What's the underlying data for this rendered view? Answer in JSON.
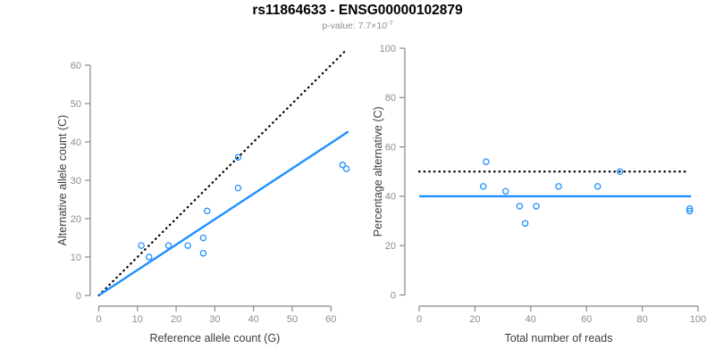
{
  "header": {
    "title": "rs11864633 - ENSG00000102879",
    "subtitle_prefix": "p-value: 7.7×10",
    "subtitle_exponent": "-7",
    "p_value": "7.7e-7"
  },
  "colors": {
    "accent_blue": "#1E90FF",
    "identity_black": "#000000",
    "axis_gray": "#878787",
    "tick_label_gray": "#8c8c8c",
    "axis_title_dark": "#3c3c3c",
    "subtitle_gray": "#8e8e8e"
  },
  "chart_data": [
    {
      "name": "allele-counts-scatter",
      "type": "scatter",
      "xlabel": "Reference allele count (G)",
      "ylabel": "Alternative allele count (C)",
      "xlim": [
        0,
        64.5
      ],
      "ylim": [
        0,
        64.5
      ],
      "xticks": [
        0,
        10,
        20,
        30,
        40,
        50,
        60
      ],
      "yticks": [
        0,
        10,
        20,
        30,
        40,
        50,
        60
      ],
      "grid": false,
      "legend": null,
      "points": [
        [
          11,
          13
        ],
        [
          13,
          10
        ],
        [
          18,
          13
        ],
        [
          23,
          13
        ],
        [
          27,
          11
        ],
        [
          27,
          15
        ],
        [
          28,
          22
        ],
        [
          36,
          28
        ],
        [
          36,
          36
        ],
        [
          63,
          34
        ],
        [
          64,
          33
        ]
      ],
      "point_color": "#1E90FF",
      "lines": [
        {
          "name": "identity-line",
          "style": "dotted",
          "color": "#000000",
          "x1": 0,
          "y1": 0,
          "x2": 63.7,
          "y2": 63.7
        },
        {
          "name": "fit-line",
          "style": "solid",
          "color": "#1E90FF",
          "x1": 0,
          "y1": 0,
          "x2": 64.5,
          "y2": 42.7
        }
      ]
    },
    {
      "name": "percentage-vs-reads-scatter",
      "type": "scatter",
      "xlabel": "Total number of reads",
      "ylabel": "Percentage alternative (C)",
      "xlim": [
        0,
        101
      ],
      "ylim": [
        0,
        100
      ],
      "xticks": [
        0,
        20,
        40,
        60,
        80,
        100
      ],
      "yticks": [
        0,
        20,
        40,
        60,
        80,
        100
      ],
      "grid": false,
      "legend": null,
      "points": [
        [
          23,
          44
        ],
        [
          24,
          54
        ],
        [
          31,
          42
        ],
        [
          36,
          36
        ],
        [
          38,
          29
        ],
        [
          42,
          36
        ],
        [
          50,
          44
        ],
        [
          64,
          44
        ],
        [
          72,
          50
        ],
        [
          97,
          35
        ],
        [
          97,
          34
        ]
      ],
      "point_color": "#1E90FF",
      "lines": [
        {
          "name": "expected-percentage-line",
          "style": "dotted",
          "color": "#000000",
          "x1": 0,
          "y1": 50,
          "x2": 96,
          "y2": 50
        },
        {
          "name": "fit-percentage-line",
          "style": "solid",
          "color": "#1E90FF",
          "x1": 0,
          "y1": 40,
          "x2": 97.5,
          "y2": 40
        }
      ]
    }
  ]
}
